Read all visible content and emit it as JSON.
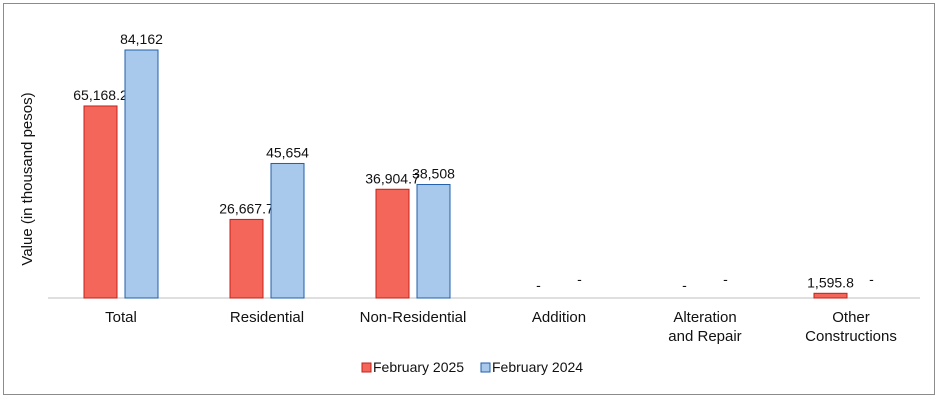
{
  "chart_data": {
    "type": "bar",
    "ylabel": "Value  (in thousand pesos)",
    "categories": [
      [
        "Total"
      ],
      [
        "Residential"
      ],
      [
        "Non-Residential"
      ],
      [
        "Addition"
      ],
      [
        "Alteration",
        "and Repair"
      ],
      [
        "Other",
        "Constructions"
      ]
    ],
    "series": [
      {
        "name": "February 2025",
        "color": "#f4655a",
        "stroke": "#c0221b",
        "values": [
          65168.2,
          26667.7,
          36904.7,
          0,
          0,
          1595.8
        ],
        "labels": [
          "65,168.2",
          "26,667.7",
          "36,904.7",
          "-",
          "-",
          "1,595.8"
        ]
      },
      {
        "name": "February 2024",
        "color": "#a9c9ec",
        "stroke": "#1f5fa8",
        "values": [
          84162,
          45654,
          38508,
          0,
          0,
          0
        ],
        "labels": [
          "84,162",
          "45,654",
          "38,508",
          "-",
          "-",
          "-"
        ]
      }
    ],
    "ylim": [
      0,
      84162
    ],
    "grid": false,
    "legend_position": "bottom"
  }
}
